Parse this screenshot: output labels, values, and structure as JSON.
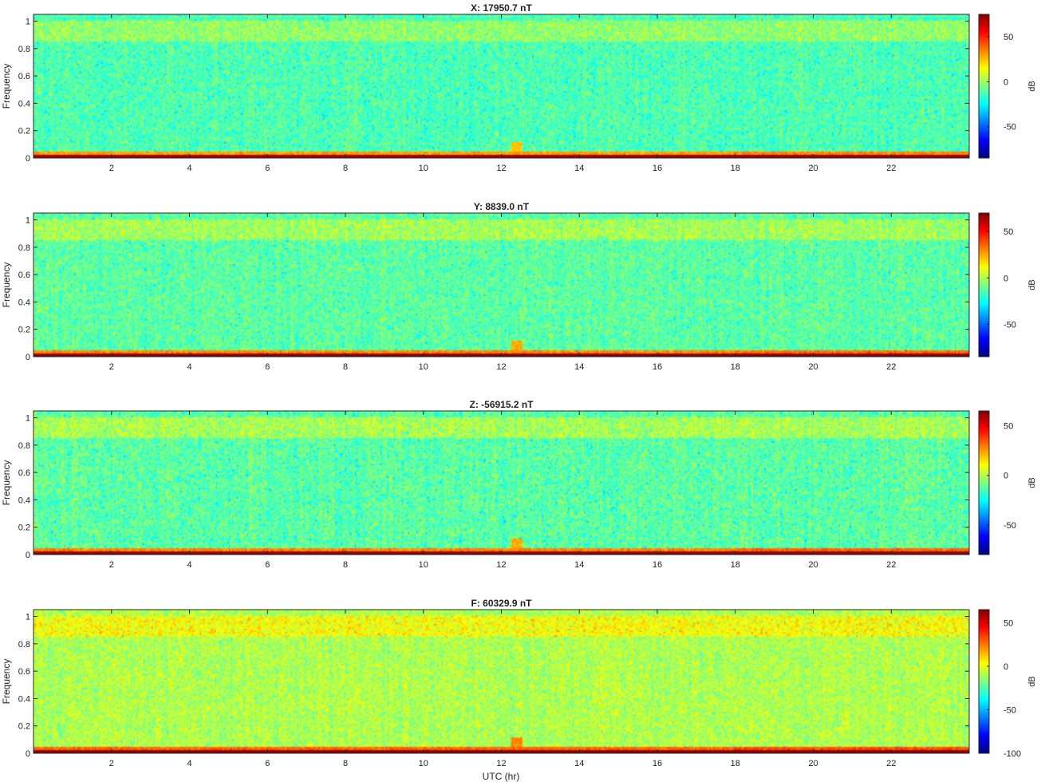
{
  "chart_data": {
    "type": "heatmap",
    "colormap": "jet",
    "x_axis": {
      "label": "UTC (hr)",
      "range": [
        0,
        24
      ],
      "ticks": [
        2,
        4,
        6,
        8,
        10,
        12,
        14,
        16,
        18,
        20,
        22
      ]
    },
    "y_axis": {
      "label": "Frequency",
      "range": [
        0,
        1.05
      ],
      "ticks": [
        0,
        0.2,
        0.4,
        0.6,
        0.8,
        1
      ],
      "tick_labels": [
        "0",
        "0.2",
        "0.4",
        "0.6",
        "0.8",
        "1"
      ]
    },
    "panels": [
      {
        "title": "X: 17950.7 nT",
        "colorbar": {
          "label": "dB",
          "range": [
            -85,
            75
          ],
          "ticks": [
            -50,
            0,
            50
          ],
          "tick_labels": [
            "-50",
            "0",
            "50"
          ]
        },
        "levels": {
          "background_db": -13,
          "upper_band_db": -2,
          "low_freq_db": 30,
          "dc_db": 70
        },
        "features": [
          {
            "utc_hr": 12.4,
            "description": "broadband burst"
          }
        ]
      },
      {
        "title": "Y: 8839.0 nT",
        "colorbar": {
          "label": "dB",
          "range": [
            -85,
            70
          ],
          "ticks": [
            -50,
            0,
            50
          ],
          "tick_labels": [
            "-50",
            "0",
            "50"
          ]
        },
        "levels": {
          "background_db": -13,
          "upper_band_db": -2,
          "low_freq_db": 30,
          "dc_db": 68
        },
        "features": [
          {
            "utc_hr": 12.4,
            "description": "broadband burst"
          }
        ]
      },
      {
        "title": "Z: -56915.2 nT",
        "colorbar": {
          "label": "dB",
          "range": [
            -80,
            65
          ],
          "ticks": [
            -50,
            0,
            50
          ],
          "tick_labels": [
            "-50",
            "0",
            "50"
          ]
        },
        "levels": {
          "background_db": -13,
          "upper_band_db": -2,
          "low_freq_db": 28,
          "dc_db": 62
        },
        "features": [
          {
            "utc_hr": 12.4,
            "description": "broadband burst"
          }
        ]
      },
      {
        "title": "F: 60329.9 nT",
        "colorbar": {
          "label": "dB",
          "range": [
            -100,
            65
          ],
          "ticks": [
            -100,
            -50,
            0,
            50
          ],
          "tick_labels": [
            "-100",
            "-50",
            "0",
            "50"
          ]
        },
        "levels": {
          "background_db": -10,
          "upper_band_db": 2,
          "low_freq_db": 28,
          "dc_db": 62
        },
        "features": [
          {
            "utc_hr": 12.4,
            "description": "broadband burst"
          }
        ]
      }
    ]
  }
}
